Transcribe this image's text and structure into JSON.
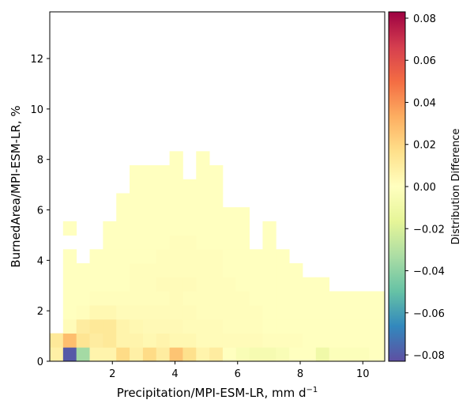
{
  "chart_data": {
    "type": "heatmap",
    "xlabel": "Precipitation/MPI-ESM-LR,  mm d",
    "xlabel_sup": "−1",
    "ylabel": "BurnedArea/MPI-ESM-LR,  %",
    "colorbar_label": "Distribution Difference",
    "xlim": [
      0.0,
      10.7
    ],
    "ylim": [
      0,
      13.85
    ],
    "x_ticks": [
      2,
      4,
      6,
      8,
      10
    ],
    "y_ticks": [
      0,
      2,
      4,
      6,
      8,
      10,
      12
    ],
    "colorbar_range": [
      -0.083,
      0.083
    ],
    "colorbar_ticks": [
      -0.08,
      -0.06,
      -0.04,
      -0.02,
      0.0,
      0.02,
      0.04,
      0.06,
      0.08
    ],
    "colorbar_tick_labels": [
      "−0.08",
      "−0.06",
      "−0.04",
      "−0.02",
      "0.00",
      "0.02",
      "0.04",
      "0.06",
      "0.08"
    ],
    "colormap": "Spectral_r",
    "bin_width_x": 0.425,
    "bin_height_y": 0.555,
    "x_start": 0.0,
    "y_start": 0.0,
    "rows": [
      [
        0.008,
        -0.08,
        -0.035,
        0.006,
        0.006,
        0.018,
        0.008,
        0.018,
        0.01,
        0.026,
        0.016,
        0.006,
        0.01,
        0.0,
        -0.004,
        -0.006,
        -0.006,
        -0.004,
        0.0,
        0.0,
        -0.01,
        -0.002,
        -0.002,
        -0.002,
        0.0,
        0.0,
        0.0,
        0.0,
        0.0,
        0.0,
        0.0,
        0.0,
        0.0,
        0.0,
        0.0
      ],
      [
        0.012,
        0.028,
        0.014,
        0.01,
        0.012,
        0.006,
        0.006,
        0.004,
        0.006,
        0.004,
        0.004,
        0.002,
        0.002,
        0.002,
        0.002,
        0.002,
        0.001,
        0.001,
        0.001,
        0.0,
        0.0,
        0.0,
        0.0,
        0.0,
        0.0,
        0.0,
        0.0,
        0.0,
        0.0,
        0.0,
        0.0,
        0.0,
        0.0,
        0.0,
        0.0
      ],
      [
        null,
        0.002,
        0.01,
        0.012,
        0.012,
        0.006,
        0.004,
        0.003,
        0.003,
        0.003,
        0.002,
        0.002,
        0.002,
        0.001,
        0.001,
        0.001,
        0.0,
        0.0,
        0.0,
        0.0,
        0.0,
        0.0,
        0.0,
        0.0,
        0.0,
        0.0,
        0.0,
        0.0,
        0.0,
        0.0,
        0.0,
        0.0,
        0.0,
        0.0,
        0.0
      ],
      [
        null,
        0.0,
        0.001,
        0.004,
        0.004,
        0.002,
        0.002,
        0.002,
        0.002,
        0.002,
        0.002,
        0.001,
        0.001,
        0.001,
        0.001,
        0.001,
        0.0,
        0.0,
        0.0,
        0.0,
        0.0,
        0.0,
        0.0,
        0.0,
        0.0,
        0.0,
        0.0,
        0.0,
        0.0,
        0.0,
        0.0,
        0.0,
        0.0,
        0.0,
        0.0
      ],
      [
        null,
        0.0,
        0.0,
        0.001,
        0.001,
        0.001,
        0.001,
        0.001,
        0.001,
        0.002,
        0.001,
        0.001,
        0.001,
        0.001,
        0.001,
        0.0,
        0.0,
        0.0,
        0.0,
        0.0,
        0.0,
        0.0,
        0.0,
        0.0,
        0.0,
        0.0,
        0.0,
        0.0,
        0.0,
        0.0,
        0.0,
        0.0,
        0.0,
        0.0,
        0.0
      ],
      [
        null,
        0.0,
        0.0,
        0.0,
        0.0,
        0.0,
        0.001,
        0.001,
        0.002,
        0.002,
        0.002,
        0.001,
        0.001,
        0.001,
        0.0,
        0.0,
        0.0,
        0.0,
        0.0,
        0.0,
        0.0,
        null,
        null,
        null,
        null,
        null,
        null,
        null,
        null,
        null,
        null,
        null,
        null,
        null,
        null
      ],
      [
        null,
        0.0,
        0.0,
        0.0,
        0.0,
        0.0,
        0.001,
        0.001,
        0.001,
        0.001,
        0.001,
        0.001,
        0.001,
        0.0,
        0.0,
        0.0,
        0.0,
        0.0,
        0.0,
        null,
        null,
        null,
        null,
        null,
        null,
        null,
        null,
        null,
        null,
        null,
        null,
        null,
        null,
        null,
        null
      ],
      [
        null,
        0.0,
        null,
        0.0,
        0.0,
        0.0,
        0.0,
        0.0,
        0.001,
        0.001,
        0.001,
        0.001,
        0.001,
        0.0,
        0.0,
        0.0,
        0.0,
        0.0,
        null,
        null,
        null,
        null,
        null,
        null,
        null,
        null,
        null,
        null,
        null,
        null,
        null,
        null,
        null,
        null,
        null
      ],
      [
        null,
        null,
        null,
        null,
        0.0,
        0.0,
        0.0,
        0.0,
        0.0,
        0.001,
        0.001,
        0.0,
        0.0,
        0.0,
        0.0,
        null,
        0.0,
        null,
        null,
        null,
        null,
        null,
        null,
        null,
        null,
        null,
        null,
        null,
        null,
        null,
        null,
        null,
        null,
        null,
        null
      ],
      [
        null,
        0.0,
        null,
        null,
        0.0,
        0.0,
        0.0,
        0.0,
        0.0,
        0.0,
        0.0,
        0.0,
        0.0,
        0.0,
        0.0,
        null,
        0.0,
        null,
        null,
        null,
        null,
        null,
        null,
        null,
        null,
        null,
        null,
        null,
        null,
        null,
        null,
        null,
        null,
        null,
        null
      ],
      [
        null,
        null,
        null,
        null,
        null,
        0.0,
        0.0,
        0.0,
        0.0,
        0.0,
        0.0,
        0.0,
        0.0,
        0.0,
        0.0,
        null,
        null,
        null,
        null,
        null,
        null,
        null,
        null,
        null,
        null,
        null,
        null,
        null,
        null,
        null,
        null,
        null,
        null,
        null,
        null
      ],
      [
        null,
        null,
        null,
        null,
        null,
        0.0,
        0.0,
        0.0,
        0.0,
        0.0,
        0.0,
        0.0,
        0.0,
        null,
        null,
        null,
        null,
        null,
        null,
        null,
        null,
        null,
        null,
        null,
        null,
        null,
        null,
        null,
        null,
        null,
        null,
        null,
        null,
        null,
        null
      ],
      [
        null,
        null,
        null,
        null,
        null,
        null,
        0.0,
        0.0,
        0.0,
        0.0,
        0.0,
        0.0,
        0.0,
        null,
        null,
        null,
        null,
        null,
        null,
        null,
        null,
        null,
        null,
        null,
        null,
        null,
        null,
        null,
        null,
        null,
        null,
        null,
        null,
        null,
        null
      ],
      [
        null,
        null,
        null,
        null,
        null,
        null,
        0.0,
        0.0,
        0.0,
        0.0,
        null,
        0.0,
        0.0,
        null,
        null,
        null,
        null,
        null,
        null,
        null,
        null,
        null,
        null,
        null,
        null,
        null,
        null,
        null,
        null,
        null,
        null,
        null,
        null,
        null,
        null
      ],
      [
        null,
        null,
        null,
        null,
        null,
        null,
        null,
        null,
        null,
        0.0,
        null,
        0.0,
        null,
        null,
        null,
        null,
        null,
        null,
        null,
        null,
        null,
        null,
        null,
        null,
        null,
        null,
        null,
        null,
        null,
        null,
        null,
        null,
        null,
        null,
        null
      ]
    ]
  }
}
